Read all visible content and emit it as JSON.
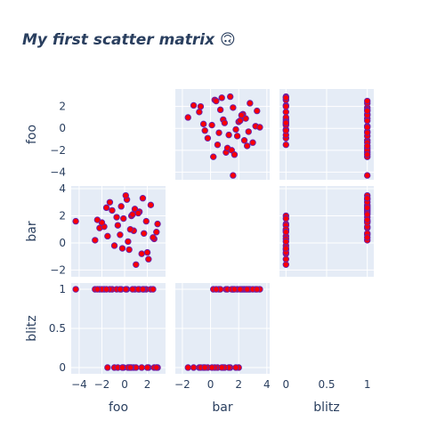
{
  "chart_data": {
    "type": "scatter",
    "title": "My first scatter matrix 🙃",
    "dimensions": [
      "foo",
      "bar",
      "blitz"
    ],
    "axes": {
      "foo": {
        "range": [
          -4.7,
          3.6
        ],
        "ticks": [
          -4,
          -2,
          0,
          2
        ]
      },
      "bar": {
        "range": [
          -2.5,
          4.2
        ],
        "ticks": [
          -2,
          0,
          2,
          4
        ]
      },
      "blitz": {
        "range": [
          -0.08,
          1.08
        ],
        "ticks": [
          0,
          0.5,
          1
        ]
      }
    },
    "diagonal_visible": false,
    "grid": true,
    "marker": {
      "fill": "#ff0000",
      "line": "#6a1fa8"
    },
    "plot_background": "#e5ecf6",
    "series": [
      {
        "values": {
          "foo": [
            -4.3,
            0.2,
            -1.5,
            1.3,
            2.1,
            -0.3,
            0.8,
            -2.2,
            1.9,
            0.4,
            -1.1,
            2.6,
            -0.7,
            1.5,
            0.1,
            -2.6,
            2.9,
            -0.4,
            1.0,
            -1.8,
            0.6,
            2.3,
            -0.9,
            1.7,
            -0.1,
            -1.3,
            0.9,
            2.0,
            -2.0,
            0.3,
            1.2,
            -0.6,
            2.5,
            -1.6,
            0.5,
            1.6,
            -0.2,
            0.7,
            -2.4,
            2.8
          ],
          "bar": [
            1.6,
            3.2,
            0.5,
            2.3,
            -1.2,
            2.7,
            0.9,
            1.1,
            1.6,
            -0.5,
            2.4,
            0.3,
            1.9,
            -0.8,
            3.5,
            0.2,
            1.4,
            0.6,
            -1.6,
            1.2,
            2.0,
            2.8,
            -0.2,
            0.7,
            1.8,
            3.0,
            2.5,
            -0.7,
            1.5,
            0.1,
            2.2,
            1.3,
            0.4,
            2.6,
            1.0,
            3.3,
            -0.4,
            2.1,
            1.7,
            0.8
          ],
          "blitz": [
            1,
            1,
            0,
            1,
            0,
            1,
            0,
            1,
            1,
            0,
            1,
            0,
            1,
            0,
            1,
            1,
            0,
            1,
            0,
            1,
            0,
            1,
            0,
            1,
            0,
            1,
            1,
            0,
            1,
            0,
            1,
            0,
            1,
            1,
            0,
            1,
            0,
            1,
            1,
            0
          ]
        }
      }
    ]
  }
}
